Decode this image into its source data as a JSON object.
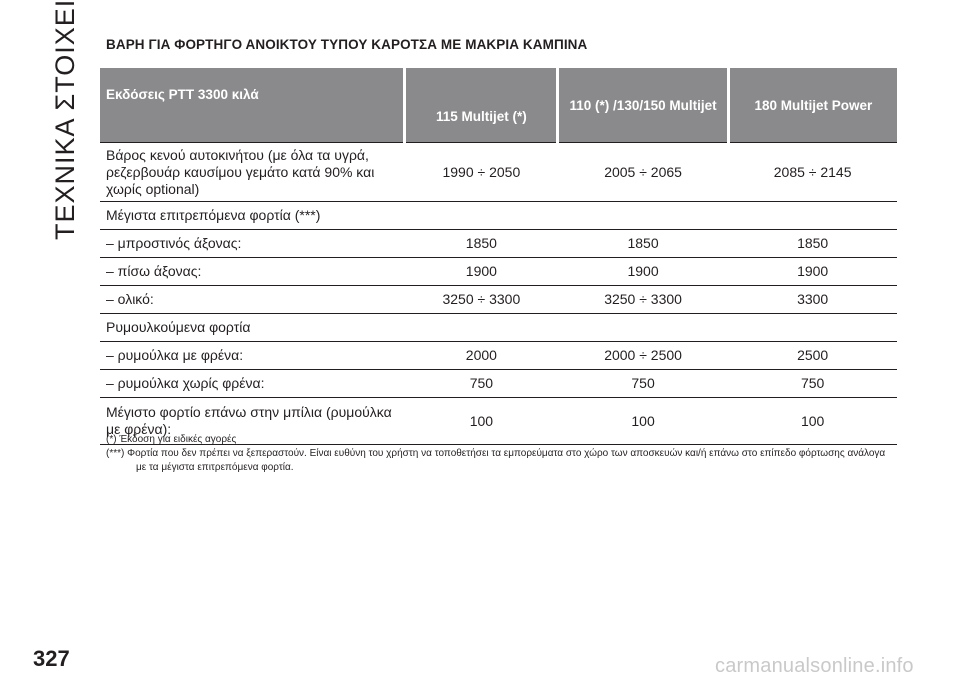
{
  "side_title": "ΤΕΧΝΙΚΑ ΣΤΟΙΧΕΙΑ",
  "page_number": "327",
  "section_title": "ΒΑΡΗ ΓΙΑ ΦΟΡΤΗΓΟ ΑΝΟΙΚΤΟΥ ΤΥΠΟΥ ΚΑΡΟΤΣΑ ΜΕ ΜΑΚΡΙΑ ΚΑΜΠΙΝΑ",
  "table": {
    "headers": [
      "Εκδόσεις PTT 3300 κιλά",
      "115 Multijet (*)",
      "110 (*) /130/150 Multijet",
      "180 Multijet Power"
    ],
    "rows": [
      {
        "label": "Βάρος κενού αυτοκινήτου (με όλα τα υγρά, ρεζερβουάρ καυσίμου γεμάτο κατά 90% και χωρίς optional)",
        "values": [
          "1990 ÷ 2050",
          "2005 ÷ 2065",
          "2085 ÷ 2145"
        ]
      },
      {
        "label": "Μέγιστα επιτρεπόμενα φορτία (***)",
        "values": [
          "",
          "",
          ""
        ]
      },
      {
        "label": "– μπροστινός άξονας:",
        "values": [
          "1850",
          "1850",
          "1850"
        ]
      },
      {
        "label": "– πίσω άξονας:",
        "values": [
          "1900",
          "1900",
          "1900"
        ]
      },
      {
        "label": "– ολικό:",
        "values": [
          "3250 ÷ 3300",
          "3250 ÷ 3300",
          "3300"
        ]
      },
      {
        "label": "Ρυμουλκούμενα φορτία",
        "values": [
          "",
          "",
          ""
        ]
      },
      {
        "label": "– ρυμούλκα με φρένα:",
        "values": [
          "2000",
          "2000 ÷ 2500",
          "2500"
        ]
      },
      {
        "label": "– ρυμούλκα χωρίς φρένα:",
        "values": [
          "750",
          "750",
          "750"
        ]
      },
      {
        "label": "Μέγιστο φορτίο επάνω στην μπίλια (ρυμούλκα με φρένα):",
        "values": [
          "100",
          "100",
          "100"
        ]
      }
    ]
  },
  "notes": [
    "(*) Έκδοση για ειδικές αγορές",
    "(***) Φορτία που δεν πρέπει να ξεπεραστούν. Είναι ευθύνη του χρήστη να τοποθετήσει τα εμπορεύματα στο χώρο των αποσκευών και/ή επάνω στο επίπεδο φόρτωσης ανάλογα με τα μέγιστα επιτρεπόμενα φορτία."
  ],
  "watermark": "carmanualsonline.info"
}
